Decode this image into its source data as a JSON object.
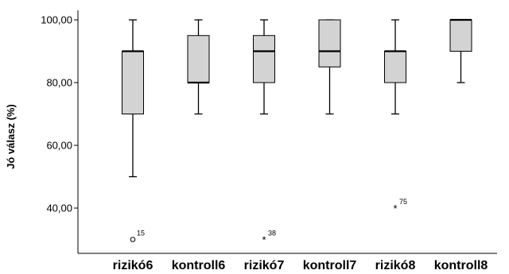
{
  "chart_data": {
    "type": "boxplot",
    "ylabel": "Jó válasz (%)",
    "ylim": [
      25,
      103
    ],
    "yticks": [
      40,
      60,
      80,
      100
    ],
    "ytick_labels": [
      "40,00",
      "60,00",
      "80,00",
      "100,00"
    ],
    "categories": [
      "rizikó6",
      "kontroll6",
      "rizikó7",
      "kontroll7",
      "rizikó8",
      "kontroll8"
    ],
    "boxes": [
      {
        "category": "rizikó6",
        "whisker_low": 50,
        "q1": 70,
        "median": 90,
        "q3": 90,
        "whisker_high": 100
      },
      {
        "category": "kontroll6",
        "whisker_low": 70,
        "q1": 80,
        "median": 80,
        "q3": 95,
        "whisker_high": 100
      },
      {
        "category": "rizikó7",
        "whisker_low": 70,
        "q1": 80,
        "median": 90,
        "q3": 95,
        "whisker_high": 100
      },
      {
        "category": "kontroll7",
        "whisker_low": 70,
        "q1": 85,
        "median": 90,
        "q3": 100,
        "whisker_high": 100
      },
      {
        "category": "rizikó8",
        "whisker_low": 70,
        "q1": 80,
        "median": 90,
        "q3": 90,
        "whisker_high": 100
      },
      {
        "category": "kontroll8",
        "whisker_low": 80,
        "q1": 90,
        "median": 100,
        "q3": 100,
        "whisker_high": 100
      }
    ],
    "outliers": [
      {
        "category": "rizikó6",
        "value": 30,
        "marker": "o",
        "label": "15"
      },
      {
        "category": "rizikó7",
        "value": 30,
        "marker": "*",
        "label": "38"
      },
      {
        "category": "rizikó8",
        "value": 40,
        "marker": "*",
        "label": "75"
      }
    ],
    "box_color": "#d3d3d3",
    "line_color": "#000000",
    "grid": false
  }
}
